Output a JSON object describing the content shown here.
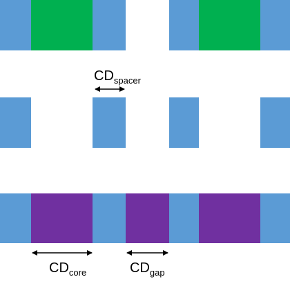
{
  "colors": {
    "spacer": "#5b9bd5",
    "core_top": "#00b050",
    "core_bottom": "#7030a0",
    "background": "#ffffff",
    "arrow": "#000000"
  },
  "rows": {
    "top": {
      "fills": [
        "core",
        "gap",
        "core"
      ]
    },
    "middle": {
      "fills": [
        "none",
        "none",
        "none"
      ]
    },
    "bottom": {
      "fills": [
        "core",
        "gap",
        "core"
      ]
    }
  },
  "labels": {
    "cd_spacer": {
      "main": "CD",
      "sub": "spacer"
    },
    "cd_core": {
      "main": "CD",
      "sub": "core"
    },
    "cd_gap": {
      "main": "CD",
      "sub": "gap"
    }
  }
}
